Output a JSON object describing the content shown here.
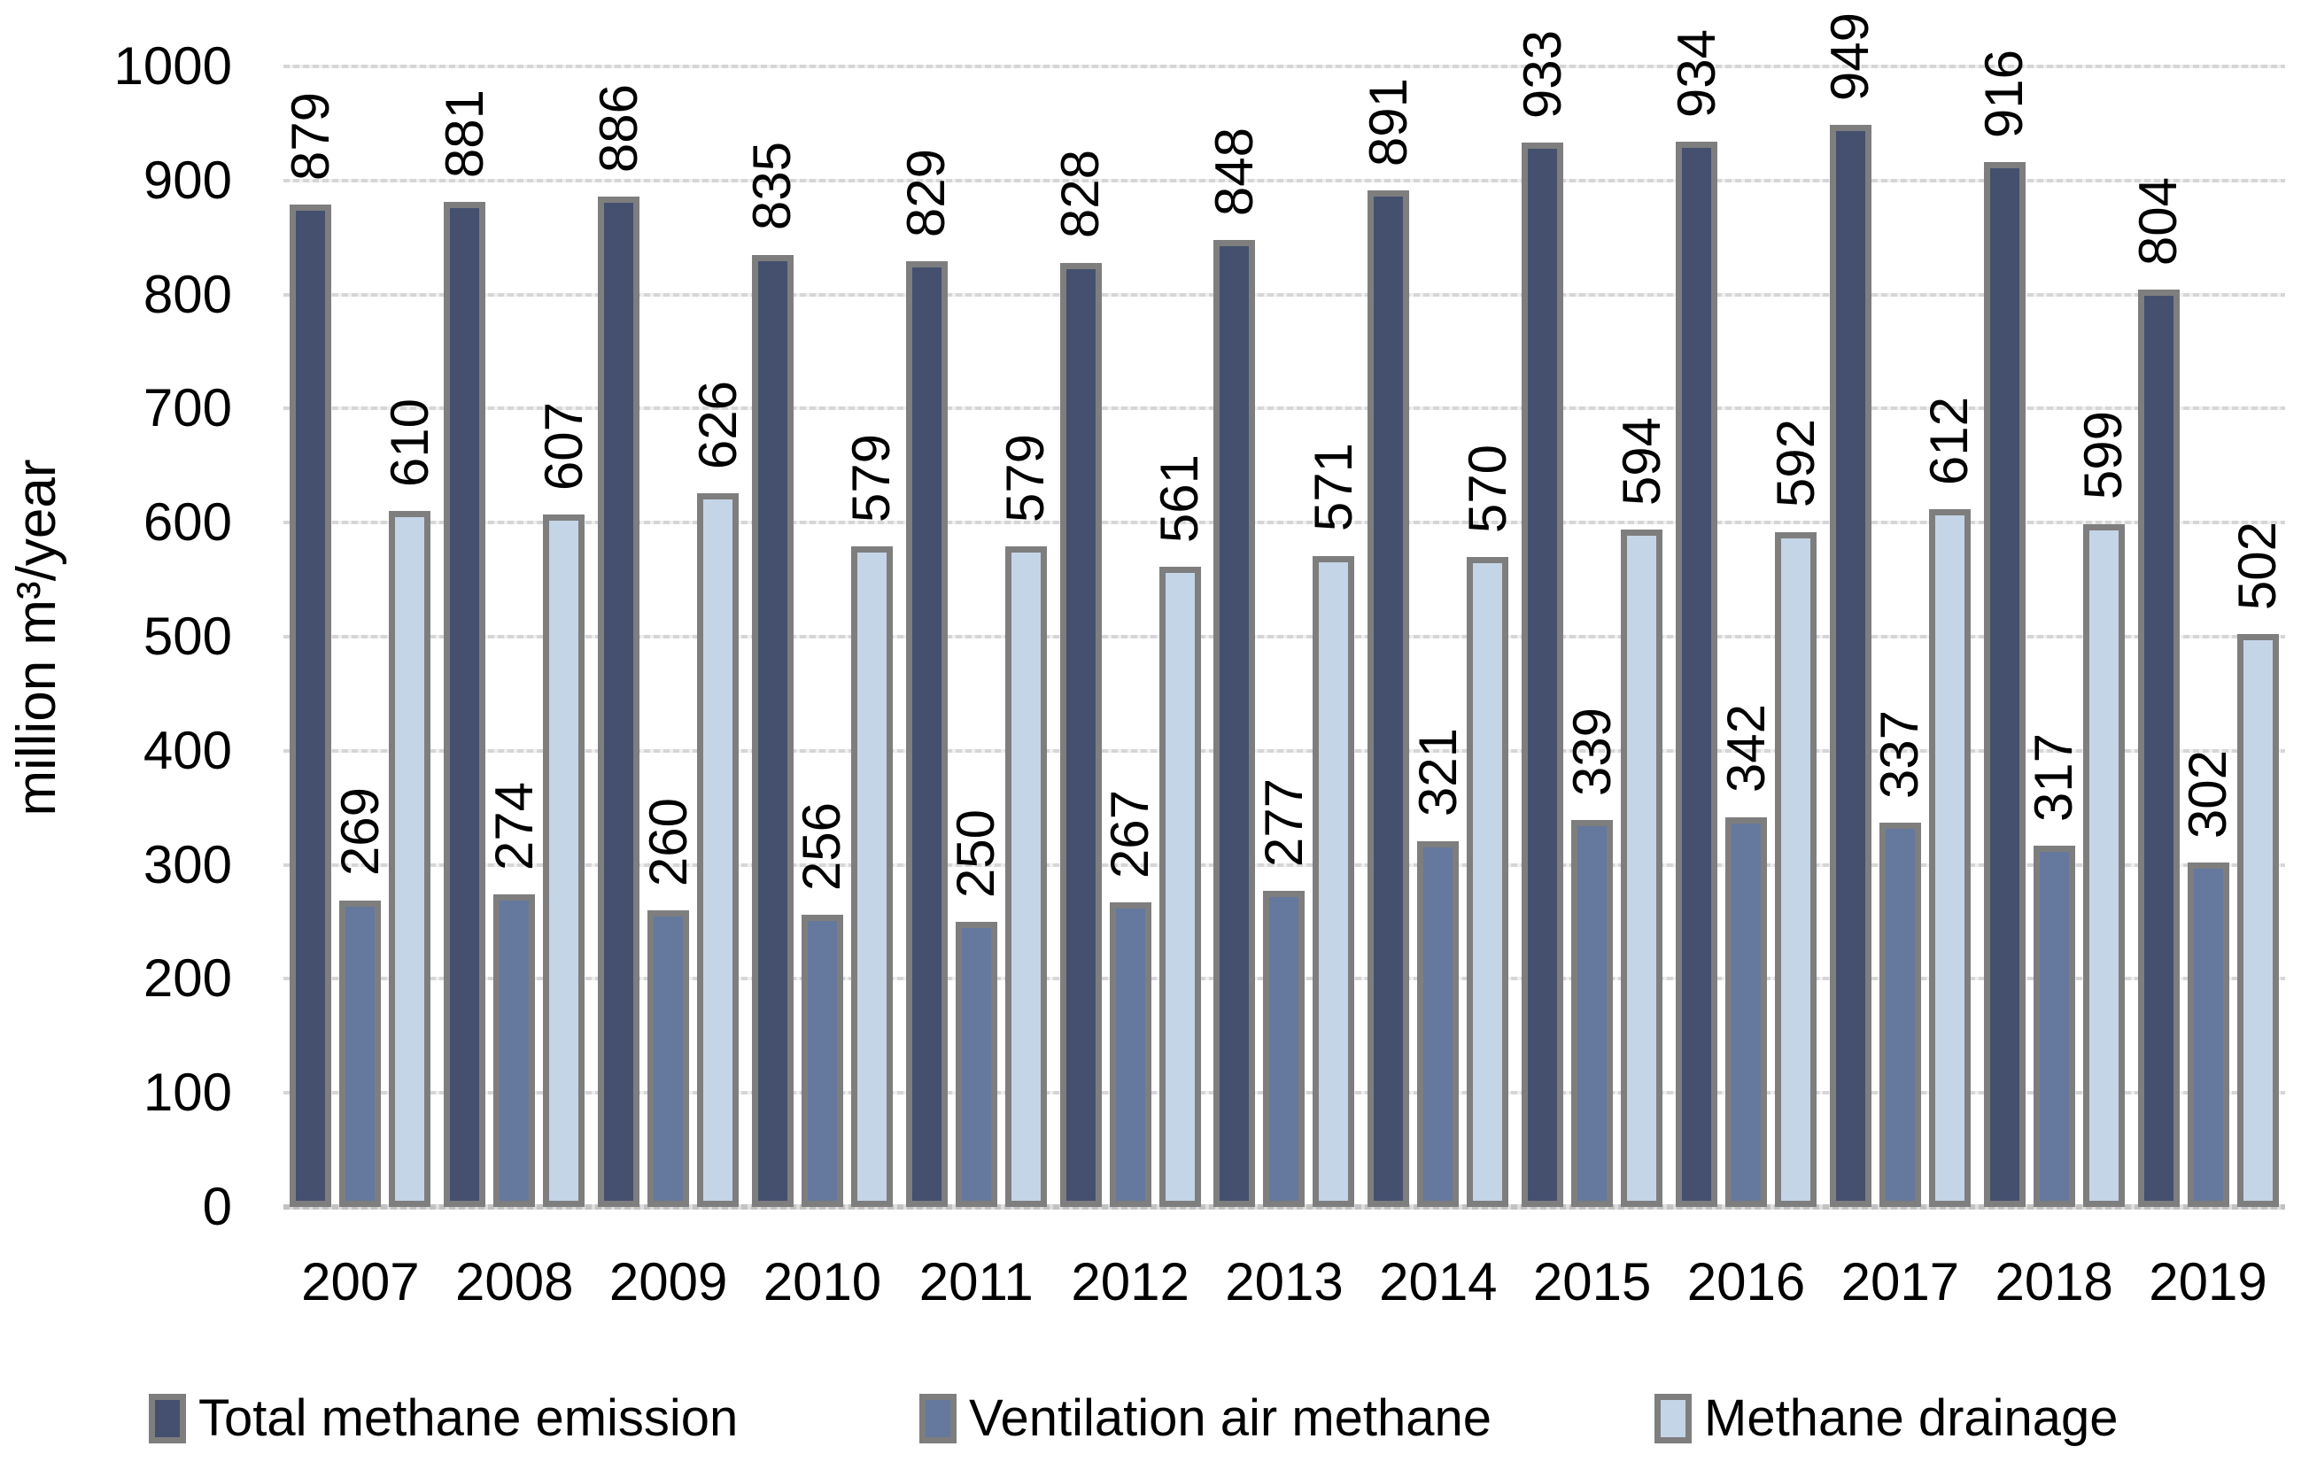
{
  "chart_data": {
    "type": "bar",
    "title": "",
    "ylabel": "million m³/year",
    "xlabel": "",
    "ylim": [
      0,
      1000
    ],
    "ytick_step": 100,
    "yticks": [
      "0",
      "100",
      "200",
      "300",
      "400",
      "500",
      "600",
      "700",
      "800",
      "900",
      "1000"
    ],
    "grid": "horizontal-dotted",
    "legend_position": "bottom",
    "bar_border_color": "#7e7e7e",
    "gridline_color": "#d6d6d6",
    "categories": [
      "2007",
      "2008",
      "2009",
      "2010",
      "2011",
      "2012",
      "2013",
      "2014",
      "2015",
      "2016",
      "2017",
      "2018",
      "2019"
    ],
    "series": [
      {
        "name": "Total methane emission",
        "color": "#44506e",
        "values": [
          879,
          881,
          886,
          835,
          829,
          828,
          848,
          891,
          933,
          934,
          949,
          916,
          804
        ]
      },
      {
        "name": "Ventilation air methane",
        "color": "#65789d",
        "values": [
          269,
          274,
          260,
          256,
          250,
          267,
          277,
          321,
          339,
          342,
          337,
          317,
          302
        ]
      },
      {
        "name": "Methane drainage",
        "color": "#c5d5e8",
        "values": [
          610,
          607,
          626,
          579,
          579,
          561,
          571,
          570,
          594,
          592,
          612,
          599,
          502
        ]
      }
    ]
  }
}
